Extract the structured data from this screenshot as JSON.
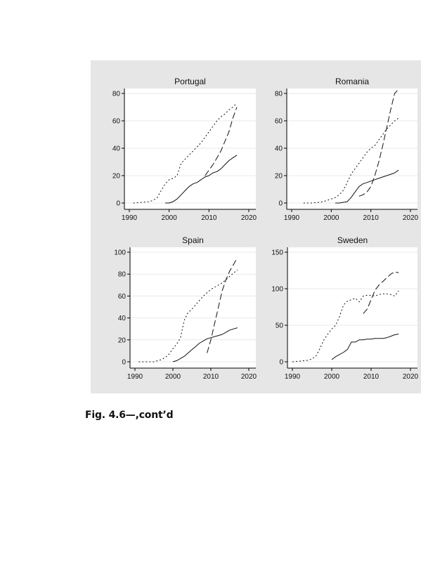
{
  "caption": "Fig. 4.6—,cont’d",
  "chart_data": [
    {
      "type": "line",
      "title": "Portugal",
      "xlabel": "",
      "ylabel": "",
      "xlim": [
        1990,
        2020
      ],
      "ylim": [
        0,
        80
      ],
      "xticks": [
        1990,
        2000,
        2010,
        2020
      ],
      "yticks": [
        0,
        20,
        40,
        60,
        80
      ],
      "grid": true,
      "series": [
        {
          "style": "dotted",
          "x": [
            1991,
            1993,
            1995,
            1996,
            1997,
            1998,
            1999,
            2000,
            2001,
            2002,
            2003,
            2005,
            2007,
            2008,
            2009,
            2010,
            2011,
            2012,
            2013,
            2014,
            2015,
            2016,
            2017
          ],
          "y": [
            0,
            0.5,
            1,
            2,
            4,
            9,
            14,
            17,
            18,
            20,
            29,
            35,
            41,
            44,
            48,
            52,
            56,
            60,
            63,
            65,
            68,
            70,
            73
          ]
        },
        {
          "style": "solid",
          "x": [
            1999,
            2000,
            2001,
            2002,
            2003,
            2004,
            2005,
            2006,
            2007,
            2008,
            2009,
            2010,
            2011,
            2012,
            2013,
            2014,
            2015,
            2016,
            2017
          ],
          "y": [
            0,
            0,
            1,
            3,
            6,
            9,
            12,
            14,
            15,
            17,
            19,
            20,
            22,
            23,
            25,
            28,
            31,
            33,
            35
          ]
        },
        {
          "style": "dashed",
          "x": [
            2009,
            2010,
            2011,
            2012,
            2013,
            2014,
            2015,
            2016,
            2017
          ],
          "y": [
            20,
            24,
            28,
            33,
            38,
            45,
            52,
            62,
            70
          ]
        }
      ]
    },
    {
      "type": "line",
      "title": "Romania",
      "xlabel": "",
      "ylabel": "",
      "xlim": [
        1990,
        2020
      ],
      "ylim": [
        0,
        80
      ],
      "xticks": [
        1990,
        2000,
        2010,
        2020
      ],
      "yticks": [
        0,
        20,
        40,
        60,
        80
      ],
      "grid": true,
      "series": [
        {
          "style": "dotted",
          "x": [
            1993,
            1995,
            1997,
            1998,
            1999,
            2000,
            2001,
            2002,
            2003,
            2004,
            2005,
            2006,
            2007,
            2008,
            2009,
            2010,
            2011,
            2012,
            2013,
            2014,
            2015,
            2016,
            2017
          ],
          "y": [
            0,
            0,
            0.5,
            1,
            2,
            3,
            4,
            6,
            9,
            15,
            21,
            25,
            29,
            33,
            37,
            40,
            42,
            46,
            50,
            54,
            57,
            60,
            62
          ]
        },
        {
          "style": "solid",
          "x": [
            2001,
            2002,
            2003,
            2004,
            2005,
            2006,
            2007,
            2008,
            2009,
            2010,
            2011,
            2012,
            2013,
            2014,
            2015,
            2016,
            2017
          ],
          "y": [
            0,
            0,
            0.5,
            1,
            4,
            8,
            12,
            14,
            15,
            16,
            17,
            18,
            19,
            20,
            21,
            22,
            24
          ]
        },
        {
          "style": "dashed",
          "x": [
            2007,
            2008,
            2009,
            2010,
            2011,
            2012,
            2013,
            2014,
            2015,
            2016,
            2017
          ],
          "y": [
            5,
            6,
            8,
            12,
            20,
            30,
            42,
            55,
            68,
            80,
            83
          ]
        }
      ]
    },
    {
      "type": "line",
      "title": "Spain",
      "xlabel": "",
      "ylabel": "",
      "xlim": [
        1990,
        2020
      ],
      "ylim": [
        0,
        100
      ],
      "xticks": [
        1990,
        2000,
        2010,
        2020
      ],
      "yticks": [
        0,
        20,
        40,
        60,
        80,
        100
      ],
      "grid": true,
      "series": [
        {
          "style": "dotted",
          "x": [
            1991,
            1993,
            1995,
            1996,
            1997,
            1998,
            1999,
            2000,
            2001,
            2002,
            2003,
            2004,
            2005,
            2006,
            2007,
            2008,
            2009,
            2010,
            2011,
            2012,
            2013,
            2014,
            2015,
            2016,
            2017
          ],
          "y": [
            0,
            0,
            0,
            1,
            2,
            4,
            7,
            12,
            16,
            22,
            38,
            45,
            48,
            52,
            56,
            60,
            63,
            66,
            68,
            70,
            72,
            75,
            78,
            81,
            84
          ]
        },
        {
          "style": "solid",
          "x": [
            2000,
            2001,
            2002,
            2003,
            2004,
            2005,
            2006,
            2007,
            2008,
            2009,
            2010,
            2011,
            2012,
            2013,
            2014,
            2015,
            2016,
            2017
          ],
          "y": [
            0,
            1,
            3,
            5,
            8,
            11,
            14,
            17,
            19,
            21,
            22,
            23,
            24,
            25,
            27,
            29,
            30,
            31
          ]
        },
        {
          "style": "dashed",
          "x": [
            2009,
            2010,
            2011,
            2012,
            2013,
            2014,
            2015,
            2016,
            2017
          ],
          "y": [
            8,
            20,
            35,
            50,
            65,
            75,
            83,
            89,
            95
          ]
        }
      ]
    },
    {
      "type": "line",
      "title": "Sweden",
      "xlabel": "",
      "ylabel": "",
      "xlim": [
        1990,
        2020
      ],
      "ylim": [
        0,
        150
      ],
      "xticks": [
        1990,
        2000,
        2010,
        2020
      ],
      "yticks": [
        0,
        50,
        100,
        150
      ],
      "grid": true,
      "series": [
        {
          "style": "dotted",
          "x": [
            1990,
            1992,
            1994,
            1995,
            1996,
            1997,
            1998,
            1999,
            2000,
            2001,
            2002,
            2003,
            2004,
            2005,
            2006,
            2007,
            2008,
            2009,
            2010,
            2011,
            2012,
            2013,
            2014,
            2015,
            2016,
            2017
          ],
          "y": [
            0,
            1,
            2,
            4,
            8,
            18,
            30,
            38,
            45,
            50,
            62,
            78,
            83,
            85,
            87,
            82,
            90,
            91,
            91,
            90,
            92,
            93,
            93,
            92,
            90,
            97
          ]
        },
        {
          "style": "solid",
          "x": [
            2000,
            2001,
            2002,
            2003,
            2004,
            2005,
            2006,
            2007,
            2008,
            2009,
            2010,
            2011,
            2012,
            2013,
            2014,
            2015,
            2016,
            2017
          ],
          "y": [
            3,
            7,
            10,
            13,
            17,
            27,
            27,
            30,
            30,
            31,
            31,
            32,
            32,
            32,
            33,
            35,
            37,
            38
          ]
        },
        {
          "style": "dashed",
          "x": [
            2008,
            2009,
            2010,
            2011,
            2012,
            2013,
            2014,
            2015,
            2016,
            2017
          ],
          "y": [
            66,
            72,
            85,
            98,
            105,
            110,
            115,
            120,
            123,
            122
          ]
        }
      ]
    }
  ]
}
